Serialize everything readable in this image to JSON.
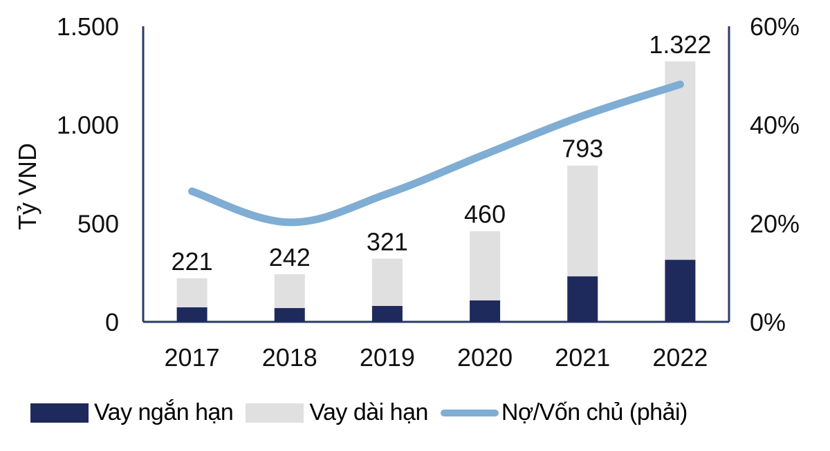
{
  "chart_data": {
    "type": "bar",
    "title": "",
    "xlabel": "",
    "ylabel": "Tỷ VND",
    "y2label": "",
    "categories": [
      "2017",
      "2018",
      "2019",
      "2020",
      "2021",
      "2022"
    ],
    "series": [
      {
        "name": "Vay ngắn hạn",
        "type": "bar",
        "stack": "debt",
        "axis": "left",
        "color": "#1f2a5c",
        "values": [
          74,
          70,
          81,
          109,
          231,
          315
        ]
      },
      {
        "name": "Vay dài hạn",
        "type": "bar",
        "stack": "debt",
        "axis": "left",
        "color": "#e0e0e0",
        "values": [
          147,
          172,
          240,
          351,
          562,
          1007
        ]
      },
      {
        "name": "Nợ/Vốn chủ (phải)",
        "type": "line",
        "axis": "right",
        "color": "#7fadd4",
        "values": [
          26.5,
          20.2,
          26.0,
          34.0,
          41.8,
          48.2
        ]
      }
    ],
    "totals": [
      221,
      242,
      321,
      460,
      793,
      1322
    ],
    "total_labels": [
      "221",
      "242",
      "321",
      "460",
      "793",
      "1.322"
    ],
    "ylim": [
      0,
      1500
    ],
    "y2lim": [
      0,
      60
    ],
    "yticks": [
      "0",
      "500",
      "1.000",
      "1.500"
    ],
    "y2ticks": [
      "0%",
      "20%",
      "40%",
      "60%"
    ],
    "grid": false,
    "legend_position": "bottom"
  },
  "legend": {
    "items": [
      {
        "label": "Vay ngắn hạn"
      },
      {
        "label": "Vay dài hạn"
      },
      {
        "label": "Nợ/Vốn chủ (phải)"
      }
    ]
  }
}
